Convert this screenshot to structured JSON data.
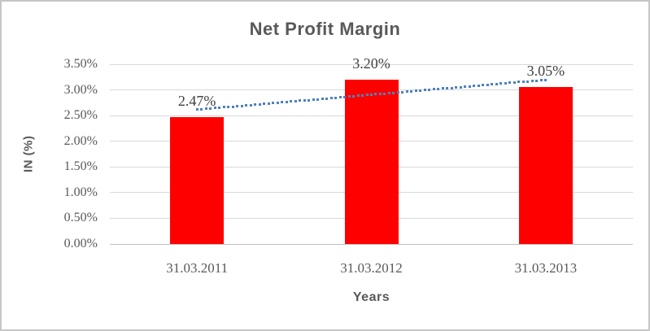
{
  "chart_data": {
    "type": "bar",
    "title": "Net Profit Margin",
    "xlabel": "Years",
    "ylabel": "IN (%)",
    "categories": [
      "31.03.2011",
      "31.03.2012",
      "31.03.2013"
    ],
    "values": [
      2.47,
      3.2,
      3.05
    ],
    "data_labels": [
      "2.47%",
      "3.20%",
      "3.05%"
    ],
    "unit": "%",
    "ylim": [
      0,
      3.5
    ],
    "ytick_step": 0.5,
    "ytick_labels": [
      "0.00%",
      "0.50%",
      "1.00%",
      "1.50%",
      "2.00%",
      "2.50%",
      "3.00%",
      "3.50%"
    ],
    "grid": true,
    "legend": false,
    "trendline": {
      "type": "linear",
      "style": "dotted"
    },
    "colors": {
      "bar": "#ff0000",
      "trendline": "#4f81bd",
      "title": "#595959",
      "tick_labels": "#595959",
      "data_labels": "#404040",
      "gridline": "#d9d9d9",
      "axis_line": "#bfbfbf",
      "frame_border": "#c6c6c6",
      "background": "#ffffff"
    }
  }
}
